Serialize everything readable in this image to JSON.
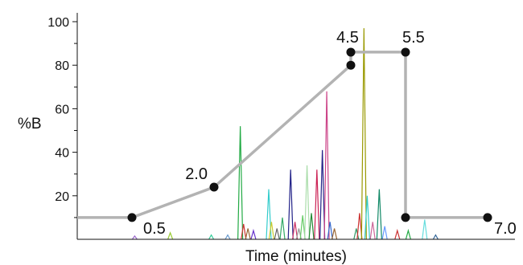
{
  "chart_data": {
    "type": "line",
    "title": "",
    "xlabel": "Time (minutes)",
    "ylabel": "%B",
    "ylim": [
      0,
      100
    ],
    "xlim": [
      -0.5,
      7.5
    ],
    "yticks": [
      20,
      40,
      60,
      80,
      100
    ],
    "grid": false,
    "series": [
      {
        "color": "#b3b3b3",
        "points": [
          {
            "x": -0.5,
            "y": 10
          },
          {
            "x": 0.5,
            "y": 10
          },
          {
            "x": 2.0,
            "y": 24
          },
          {
            "x": 4.5,
            "y": 80
          },
          {
            "x": 4.5,
            "y": 86
          },
          {
            "x": 5.5,
            "y": 86
          },
          {
            "x": 5.5,
            "y": 10
          },
          {
            "x": 7.0,
            "y": 10
          }
        ],
        "markers": [
          {
            "x": 0.5,
            "y": 10,
            "label": "0.5"
          },
          {
            "x": 2.0,
            "y": 24,
            "label": "2.0"
          },
          {
            "x": 4.5,
            "y": 80,
            "label": ""
          },
          {
            "x": 4.5,
            "y": 86,
            "label": "4.5"
          },
          {
            "x": 5.5,
            "y": 86,
            "label": "5.5"
          },
          {
            "x": 5.5,
            "y": 10,
            "label": ""
          },
          {
            "x": 7.0,
            "y": 10,
            "label": "7.0"
          }
        ]
      }
    ],
    "chromatogram": [
      {
        "x": 0.55,
        "h": 1.5,
        "color": "#9966cc"
      },
      {
        "x": 1.2,
        "h": 3,
        "color": "#99cc33"
      },
      {
        "x": 1.95,
        "h": 2,
        "color": "#33cc99"
      },
      {
        "x": 2.25,
        "h": 2,
        "color": "#6699cc"
      },
      {
        "x": 2.48,
        "h": 52,
        "color": "#22aa44"
      },
      {
        "x": 2.54,
        "h": 7,
        "color": "#cc3333"
      },
      {
        "x": 2.62,
        "h": 5,
        "color": "#996633"
      },
      {
        "x": 2.72,
        "h": 4,
        "color": "#6633cc"
      },
      {
        "x": 3.0,
        "h": 23,
        "color": "#33cccc"
      },
      {
        "x": 3.05,
        "h": 8,
        "color": "#cccc33"
      },
      {
        "x": 3.15,
        "h": 5,
        "color": "#666666"
      },
      {
        "x": 3.25,
        "h": 10,
        "color": "#33aa66"
      },
      {
        "x": 3.4,
        "h": 32,
        "color": "#222288"
      },
      {
        "x": 3.48,
        "h": 8,
        "color": "#cc3366"
      },
      {
        "x": 3.55,
        "h": 5,
        "color": "#999999"
      },
      {
        "x": 3.62,
        "h": 11,
        "color": "#66cc66"
      },
      {
        "x": 3.7,
        "h": 34,
        "color": "#aaddaa"
      },
      {
        "x": 3.78,
        "h": 12,
        "color": "#228833"
      },
      {
        "x": 3.88,
        "h": 32,
        "color": "#cc2255"
      },
      {
        "x": 3.98,
        "h": 41,
        "color": "#222288"
      },
      {
        "x": 4.06,
        "h": 68,
        "color": "#cc4488"
      },
      {
        "x": 4.12,
        "h": 8,
        "color": "#3366cc"
      },
      {
        "x": 4.2,
        "h": 5,
        "color": "#996633"
      },
      {
        "x": 4.6,
        "h": 5,
        "color": "#339966"
      },
      {
        "x": 4.66,
        "h": 12,
        "color": "#cc3333"
      },
      {
        "x": 4.74,
        "h": 97,
        "color": "#999900"
      },
      {
        "x": 4.8,
        "h": 20,
        "color": "#33cccc"
      },
      {
        "x": 4.9,
        "h": 8,
        "color": "#cc6699"
      },
      {
        "x": 5.02,
        "h": 23,
        "color": "#118866"
      },
      {
        "x": 5.12,
        "h": 6,
        "color": "#6699ff"
      },
      {
        "x": 5.35,
        "h": 4,
        "color": "#cc3333"
      },
      {
        "x": 5.55,
        "h": 4,
        "color": "#22aa44"
      },
      {
        "x": 5.85,
        "h": 9,
        "color": "#66dddd"
      },
      {
        "x": 6.05,
        "h": 2,
        "color": "#336699"
      }
    ]
  }
}
